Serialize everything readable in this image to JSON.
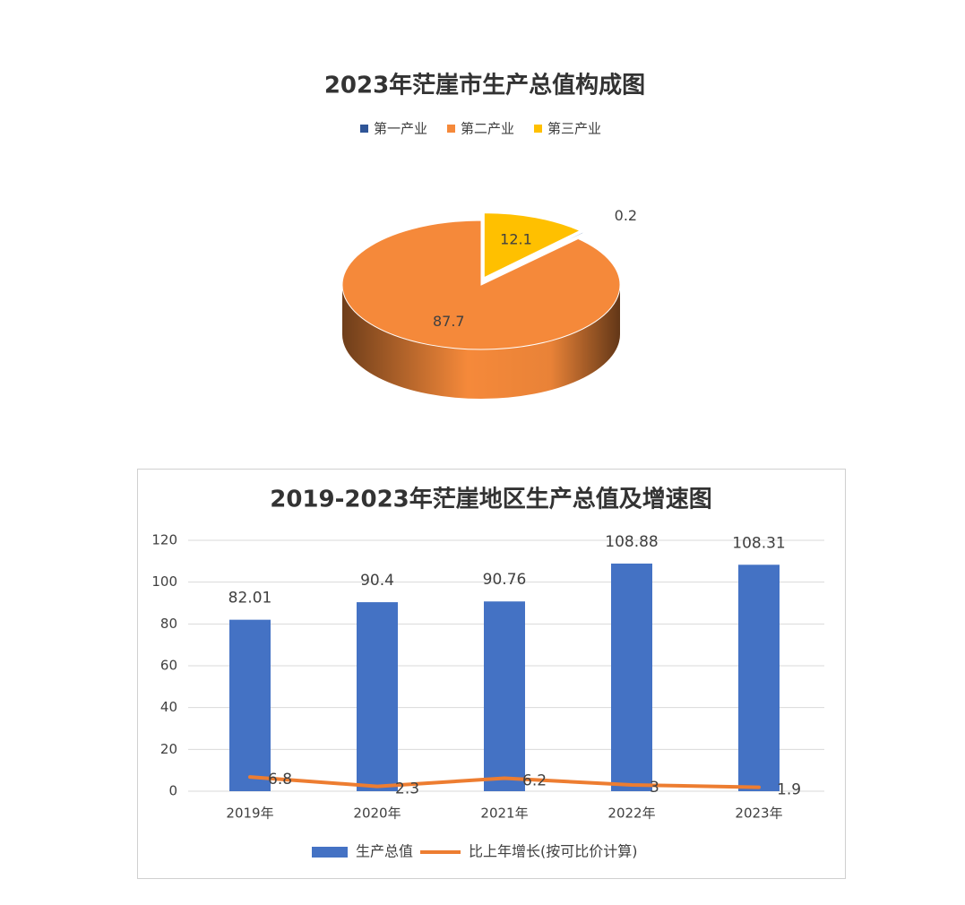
{
  "chart_data": [
    {
      "type": "pie",
      "title": "2023年茫崖市生产总值构成图",
      "categories": [
        "第一产业",
        "第二产业",
        "第三产业"
      ],
      "values": [
        0.2,
        87.7,
        12.1
      ],
      "colors": [
        "#2f5597",
        "#f5893a",
        "#ffc000"
      ],
      "legend": "top",
      "three_d": true
    },
    {
      "type": "bar",
      "title": "2019-2023年茫崖地区生产总值及增速图",
      "categories": [
        "2019年",
        "2020年",
        "2021年",
        "2022年",
        "2023年"
      ],
      "series": [
        {
          "name": "生产总值",
          "type": "bar",
          "color": "#4472c4",
          "values": [
            82.01,
            90.4,
            90.76,
            108.88,
            108.31
          ]
        },
        {
          "name": "比上年增长(按可比价计算)",
          "type": "line",
          "color": "#ed7d31",
          "values": [
            6.8,
            2.3,
            6.2,
            3,
            1.9
          ]
        }
      ],
      "ylim": [
        0,
        120
      ],
      "yticks": [
        0,
        20,
        40,
        60,
        80,
        100,
        120
      ],
      "grid": true,
      "legend": "bottom"
    }
  ]
}
